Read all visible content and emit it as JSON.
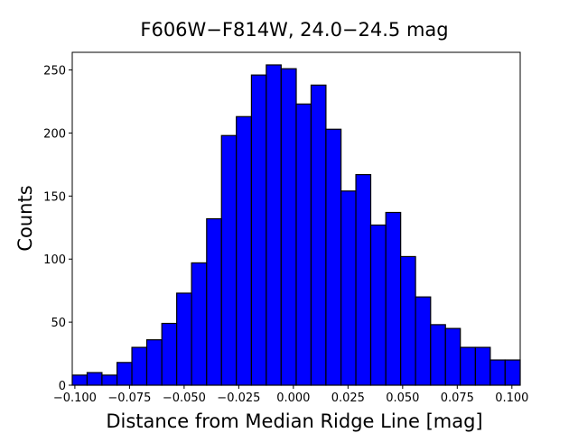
{
  "chart_data": {
    "type": "histogram",
    "title": "F606W−F814W, 24.0−24.5 mag",
    "x_label": "Distance from Median Ridge Line [mag]",
    "y_label": "Counts",
    "bins": [
      -0.1012,
      -0.0944,
      -0.0876,
      -0.0807,
      -0.0739,
      -0.0671,
      -0.0602,
      -0.0534,
      -0.0466,
      -0.0397,
      -0.0329,
      -0.0261,
      -0.0192,
      -0.0124,
      -0.0056,
      0.0013,
      0.0081,
      0.0149,
      0.0218,
      0.0286,
      0.0354,
      0.0423,
      0.0491,
      0.0559,
      0.0628,
      0.0696,
      0.0764,
      0.0833,
      0.0901,
      0.0969,
      0.1038
    ],
    "values": [
      8,
      10,
      8,
      18,
      30,
      36,
      49,
      73,
      97,
      132,
      198,
      213,
      246,
      254,
      251,
      223,
      238,
      203,
      154,
      167,
      127,
      137,
      102,
      70,
      48,
      45,
      30,
      30,
      20,
      20
    ],
    "color": "#0000ff",
    "xlim": [
      -0.1012,
      0.1038
    ],
    "ylim": [
      0,
      264
    ],
    "xticks": [
      {
        "value": -0.1,
        "label": "−0.100"
      },
      {
        "value": -0.075,
        "label": "−0.075"
      },
      {
        "value": -0.05,
        "label": "−0.050"
      },
      {
        "value": -0.025,
        "label": "−0.025"
      },
      {
        "value": 0,
        "label": "0.000"
      },
      {
        "value": 0.025,
        "label": "0.025"
      },
      {
        "value": 0.05,
        "label": "0.050"
      },
      {
        "value": 0.075,
        "label": "0.075"
      },
      {
        "value": 0.1,
        "label": "0.100"
      }
    ],
    "yticks": [
      0,
      50,
      100,
      150,
      200,
      250
    ]
  }
}
